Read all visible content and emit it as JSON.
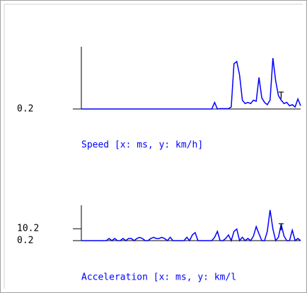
{
  "chart_data": [
    {
      "type": "line",
      "title": "Speed [x: ms, y: km/h]",
      "marker_label": "T",
      "color": "#0000ff",
      "ylim": [
        0.2,
        55
      ],
      "yticks": [
        0.2
      ],
      "values": [
        0.2,
        0.2,
        0.2,
        0.2,
        0.2,
        0.2,
        0.2,
        0.2,
        0.2,
        0.2,
        0.2,
        0.2,
        0.2,
        0.2,
        0.2,
        0.2,
        0.2,
        0.2,
        0.2,
        0.2,
        0.2,
        0.2,
        0.2,
        0.2,
        0.2,
        0.2,
        0.2,
        0.2,
        0.2,
        0.2,
        0.2,
        0.2,
        0.2,
        0.2,
        0.2,
        0.2,
        0.2,
        0.2,
        0.2,
        0.2,
        0.2,
        0.2,
        0.2,
        0.2,
        0.2,
        0.2,
        0.2,
        0.2,
        6,
        0.2,
        0.5,
        0.5,
        0.5,
        0.5,
        2,
        40,
        42,
        30,
        8,
        5,
        6,
        5,
        8,
        7,
        28,
        10,
        6,
        4,
        8,
        45,
        25,
        12,
        8,
        5,
        6,
        3,
        4,
        2,
        9,
        3
      ]
    },
    {
      "type": "line",
      "title": "Acceleration [x: ms, y: km/l",
      "marker_label": "T",
      "color": "#0000ff",
      "ylim": [
        0.2,
        30
      ],
      "yticks": [
        10.2,
        0.2
      ],
      "values": [
        0.2,
        0.2,
        0.2,
        0.2,
        0.2,
        0.2,
        0.2,
        0.2,
        0.2,
        0.2,
        2,
        0.2,
        2,
        0.2,
        0.2,
        2,
        0.2,
        2,
        2,
        0.2,
        2,
        3,
        2,
        0.2,
        0.2,
        2,
        3,
        2,
        2,
        3,
        2,
        0.2,
        3,
        0.2,
        0.2,
        0.2,
        0.2,
        0.2,
        3,
        0.2,
        5,
        7,
        0.2,
        0.2,
        0.2,
        0.2,
        0.2,
        0.2,
        3,
        8,
        0.2,
        0.2,
        2,
        5,
        0.2,
        8,
        10,
        0.2,
        3,
        0.2,
        2,
        0.2,
        4,
        12,
        6,
        0.2,
        0.2,
        8,
        26,
        10,
        0.2,
        3,
        14,
        4,
        0.2,
        0.2,
        9,
        0.2,
        2,
        0.2
      ]
    }
  ]
}
